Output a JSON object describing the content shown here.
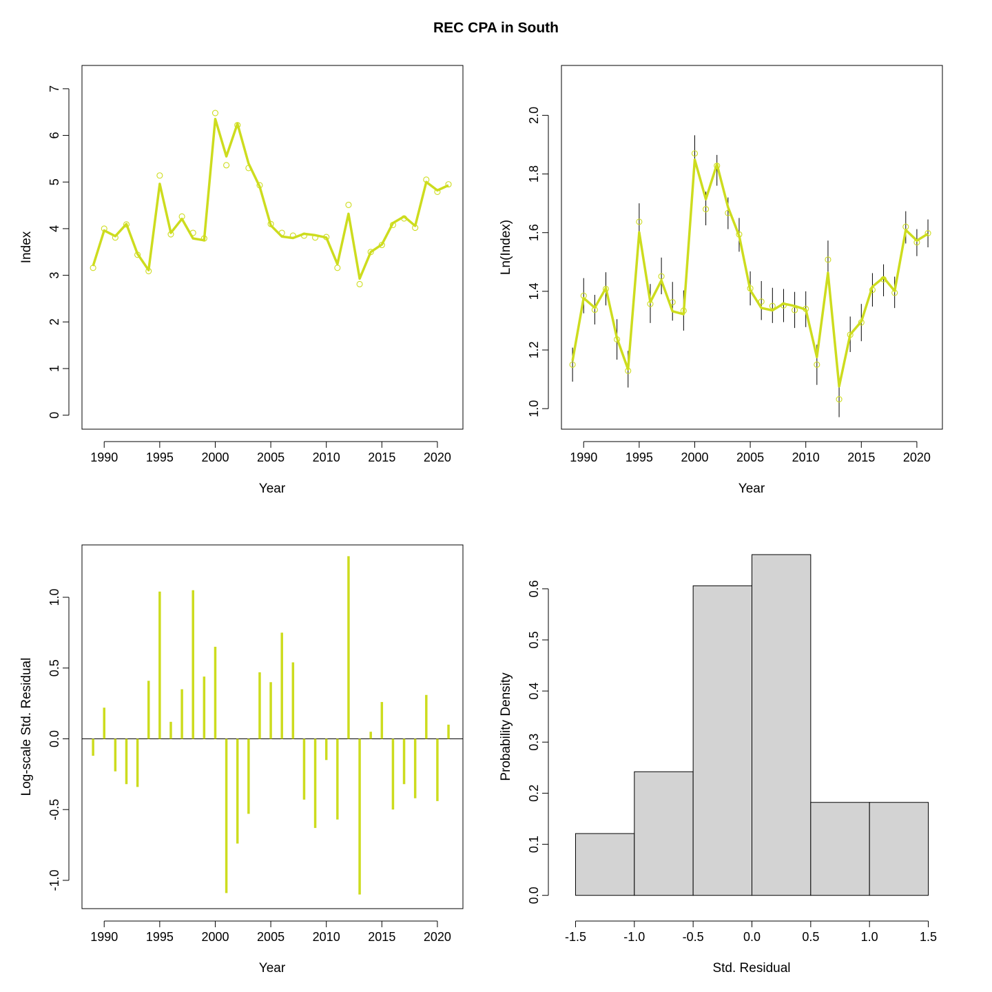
{
  "title": "REC CPA in South",
  "colors": {
    "series": "#CDDC1E",
    "bar_fill": "#D3D3D3",
    "axis": "#000000"
  },
  "chart_data": [
    {
      "type": "line",
      "panel": "top-left",
      "xlabel": "Year",
      "ylabel": "Index",
      "xlim": [
        1988,
        2022.3
      ],
      "ylim": [
        -0.3,
        7.5
      ],
      "xticks": [
        1990,
        1995,
        2000,
        2005,
        2010,
        2015,
        2020
      ],
      "xtick_labels": [
        "1990",
        "1995",
        "2000",
        "2005",
        "2010",
        "2015",
        "2020"
      ],
      "yticks": [
        0,
        1,
        2,
        3,
        4,
        5,
        6,
        7
      ],
      "ytick_labels": [
        "0",
        "1",
        "2",
        "3",
        "4",
        "5",
        "6",
        "7"
      ],
      "x": [
        1989,
        1990,
        1991,
        1992,
        1993,
        1994,
        1995,
        1996,
        1997,
        1998,
        1999,
        2000,
        2001,
        2002,
        2003,
        2004,
        2005,
        2006,
        2007,
        2008,
        2009,
        2010,
        2011,
        2012,
        2013,
        2014,
        2015,
        2016,
        2017,
        2018,
        2019,
        2020,
        2021
      ],
      "series": [
        {
          "kind": "points",
          "values": [
            3.16,
            4.0,
            3.81,
            4.09,
            3.44,
            3.09,
            5.14,
            3.88,
            4.26,
            3.91,
            3.79,
            6.48,
            5.36,
            6.22,
            5.3,
            4.93,
            4.1,
            3.91,
            3.85,
            3.85,
            3.81,
            3.82,
            3.16,
            4.51,
            2.81,
            3.5,
            3.65,
            4.08,
            4.22,
            4.02,
            5.05,
            4.79,
            4.95
          ]
        },
        {
          "kind": "line",
          "values": [
            3.2,
            3.96,
            3.84,
            4.1,
            3.46,
            3.11,
            4.96,
            3.91,
            4.21,
            3.79,
            3.75,
            6.35,
            5.55,
            6.25,
            5.4,
            4.9,
            4.07,
            3.83,
            3.8,
            3.89,
            3.86,
            3.81,
            3.24,
            4.32,
            2.93,
            3.5,
            3.66,
            4.12,
            4.26,
            4.06,
            5.0,
            4.82,
            4.93
          ]
        }
      ]
    },
    {
      "type": "line",
      "panel": "top-right",
      "xlabel": "Year",
      "ylabel": "Ln(Index)",
      "xlim": [
        1988,
        2022.3
      ],
      "ylim": [
        0.93,
        2.17
      ],
      "xticks": [
        1990,
        1995,
        2000,
        2005,
        2010,
        2015,
        2020
      ],
      "xtick_labels": [
        "1990",
        "1995",
        "2000",
        "2005",
        "2010",
        "2015",
        "2020"
      ],
      "yticks": [
        1.0,
        1.2,
        1.4,
        1.6,
        1.8,
        2.0
      ],
      "ytick_labels": [
        "1.0",
        "1.2",
        "1.4",
        "1.6",
        "1.8",
        "2.0"
      ],
      "x": [
        1989,
        1990,
        1991,
        1992,
        1993,
        1994,
        1995,
        1996,
        1997,
        1998,
        1999,
        2000,
        2001,
        2002,
        2003,
        2004,
        2005,
        2006,
        2007,
        2008,
        2009,
        2010,
        2011,
        2012,
        2013,
        2014,
        2015,
        2016,
        2017,
        2018,
        2019,
        2020,
        2021
      ],
      "series": [
        {
          "kind": "points",
          "values": [
            1.15,
            1.385,
            1.337,
            1.408,
            1.236,
            1.129,
            1.637,
            1.357,
            1.451,
            1.363,
            1.334,
            1.87,
            1.68,
            1.828,
            1.667,
            1.594,
            1.41,
            1.365,
            1.35,
            1.352,
            1.336,
            1.34,
            1.15,
            1.508,
            1.032,
            1.252,
            1.294,
            1.405,
            1.441,
            1.395,
            1.62,
            1.567,
            1.598
          ]
        },
        {
          "kind": "line",
          "values": [
            1.163,
            1.377,
            1.344,
            1.411,
            1.24,
            1.134,
            1.601,
            1.363,
            1.437,
            1.332,
            1.322,
            1.849,
            1.714,
            1.833,
            1.687,
            1.589,
            1.404,
            1.343,
            1.335,
            1.358,
            1.35,
            1.338,
            1.176,
            1.463,
            1.076,
            1.253,
            1.297,
            1.416,
            1.447,
            1.401,
            1.609,
            1.573,
            1.596
          ]
        },
        {
          "kind": "errorbars",
          "lower": [
            1.092,
            1.325,
            1.287,
            1.352,
            1.167,
            1.072,
            1.577,
            1.292,
            1.39,
            1.3,
            1.266,
            1.812,
            1.625,
            1.76,
            1.612,
            1.535,
            1.352,
            1.302,
            1.292,
            1.295,
            1.275,
            1.278,
            1.081,
            1.445,
            0.971,
            1.193,
            1.23,
            1.348,
            1.383,
            1.343,
            1.563,
            1.52,
            1.55
          ],
          "upper": [
            1.208,
            1.445,
            1.388,
            1.465,
            1.305,
            1.197,
            1.7,
            1.425,
            1.515,
            1.432,
            1.403,
            1.932,
            1.74,
            1.865,
            1.72,
            1.65,
            1.468,
            1.435,
            1.412,
            1.408,
            1.398,
            1.4,
            1.218,
            1.573,
            1.098,
            1.314,
            1.357,
            1.462,
            1.492,
            1.45,
            1.673,
            1.612,
            1.645
          ]
        }
      ]
    },
    {
      "type": "bar",
      "panel": "bottom-left",
      "xlabel": "Year",
      "ylabel": "Log-scale Std. Residual",
      "xlim": [
        1988,
        2022.3
      ],
      "ylim": [
        -1.2,
        1.37
      ],
      "xticks": [
        1990,
        1995,
        2000,
        2005,
        2010,
        2015,
        2020
      ],
      "xtick_labels": [
        "1990",
        "1995",
        "2000",
        "2005",
        "2010",
        "2015",
        "2020"
      ],
      "yticks": [
        -1.0,
        -0.5,
        0.0,
        0.5,
        1.0
      ],
      "ytick_labels": [
        "-1.0",
        "-0.5",
        "0.0",
        "0.5",
        "1.0"
      ],
      "x": [
        1989,
        1990,
        1991,
        1992,
        1993,
        1994,
        1995,
        1996,
        1997,
        1998,
        1999,
        2000,
        2001,
        2002,
        2003,
        2004,
        2005,
        2006,
        2007,
        2008,
        2009,
        2010,
        2011,
        2012,
        2013,
        2014,
        2015,
        2016,
        2017,
        2018,
        2019,
        2020,
        2021
      ],
      "values": [
        -0.12,
        0.22,
        -0.23,
        -0.32,
        -0.34,
        0.41,
        1.04,
        0.12,
        0.35,
        1.05,
        0.44,
        0.65,
        -1.09,
        -0.74,
        -0.53,
        0.47,
        0.4,
        0.75,
        0.54,
        -0.43,
        -0.63,
        -0.15,
        -0.57,
        1.29,
        -1.1,
        0.05,
        0.26,
        -0.5,
        -0.32,
        -0.42,
        0.31,
        -0.44,
        0.1
      ],
      "hline": 0
    },
    {
      "type": "bar",
      "subtype": "histogram",
      "panel": "bottom-right",
      "xlabel": "Std. Residual",
      "ylabel": "Probability Density",
      "xlim": [
        -1.62,
        1.62
      ],
      "ylim": [
        -0.026,
        0.686
      ],
      "xticks": [
        -1.5,
        -1.0,
        -0.5,
        0.0,
        0.5,
        1.0,
        1.5
      ],
      "xtick_labels": [
        "-1.5",
        "-1.0",
        "-0.5",
        "0.0",
        "0.5",
        "1.0",
        "1.5"
      ],
      "yticks": [
        0.0,
        0.1,
        0.2,
        0.3,
        0.4,
        0.5,
        0.6
      ],
      "ytick_labels": [
        "0.0",
        "0.1",
        "0.2",
        "0.3",
        "0.4",
        "0.5",
        "0.6"
      ],
      "bin_edges": [
        -1.5,
        -1.0,
        -0.5,
        0.0,
        0.5,
        1.0,
        1.5
      ],
      "values": [
        0.121,
        0.242,
        0.606,
        0.667,
        0.182,
        0.182
      ]
    }
  ]
}
